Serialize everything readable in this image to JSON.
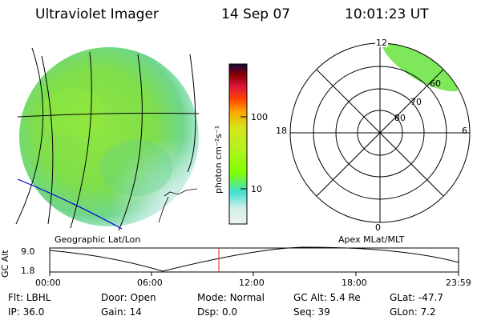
{
  "header": {
    "instrument": "Ultraviolet Imager",
    "date": "14 Sep 07",
    "time": "10:01:23 UT"
  },
  "image_panel": {
    "label": "Geographic Lat/Lon"
  },
  "colorbar": {
    "label": "photon cm⁻²s⁻¹",
    "ticks": [
      "100",
      "10"
    ],
    "scale": "log",
    "colors": [
      "#eef2f2",
      "#cfeee8",
      "#40e0d0",
      "#7fff00",
      "#d4e61a",
      "#ffa500",
      "#ff4500",
      "#dc143c",
      "#8b0000",
      "#4b0030",
      "#101030"
    ]
  },
  "polar_plot": {
    "label": "Apex MLat/MLT",
    "mlt_labels": {
      "top": "12",
      "left": "18",
      "right": "6",
      "bottom": "0"
    },
    "lat_labels": [
      "60",
      "70",
      "80"
    ]
  },
  "altitude_strip": {
    "ylabel": "GC Alt",
    "ytick_top": "9.0",
    "ytick_bottom": "1.8",
    "xticks": [
      "00:00",
      "06:00",
      "12:00",
      "18:00",
      "23:59"
    ],
    "marker_time": "10:01"
  },
  "info": {
    "row1": [
      {
        "label": "Flt:",
        "value": "LBHL"
      },
      {
        "label": "Door:",
        "value": "Open"
      },
      {
        "label": "Mode:",
        "value": "Normal"
      },
      {
        "label": "GC Alt:",
        "value": "5.4 Re"
      },
      {
        "label": "GLat:",
        "value": "-47.7"
      }
    ],
    "row2": [
      {
        "label": "IP:",
        "value": "36.0"
      },
      {
        "label": "Gain:",
        "value": "14"
      },
      {
        "label": "Dsp:",
        "value": "0.0"
      },
      {
        "label": "Seq:",
        "value": "39"
      },
      {
        "label": "GLon:",
        "value": "7.2"
      }
    ]
  }
}
